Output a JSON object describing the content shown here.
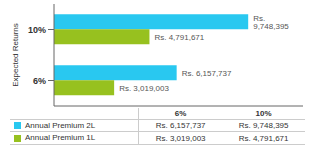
{
  "chart_data": {
    "type": "bar",
    "orientation": "horizontal",
    "categories": [
      "6%",
      "10%"
    ],
    "y_label": "Expected Returns",
    "series": [
      {
        "name": "Annual Premium 2L",
        "color": "#29C8F0",
        "values": [
          6157737,
          9748395
        ],
        "value_labels": [
          "Rs. 6,157,737",
          "Rs. 9,748,395"
        ]
      },
      {
        "name": "Annual Premium 1L",
        "color": "#97C11F",
        "values": [
          3019003,
          4791671
        ],
        "value_labels": [
          "Rs. 3,019,003",
          "Rs. 4,791,671"
        ]
      }
    ],
    "xlim": [
      0,
      12500000
    ],
    "data_labels": true,
    "tick_labels": "y",
    "grid": false
  }
}
